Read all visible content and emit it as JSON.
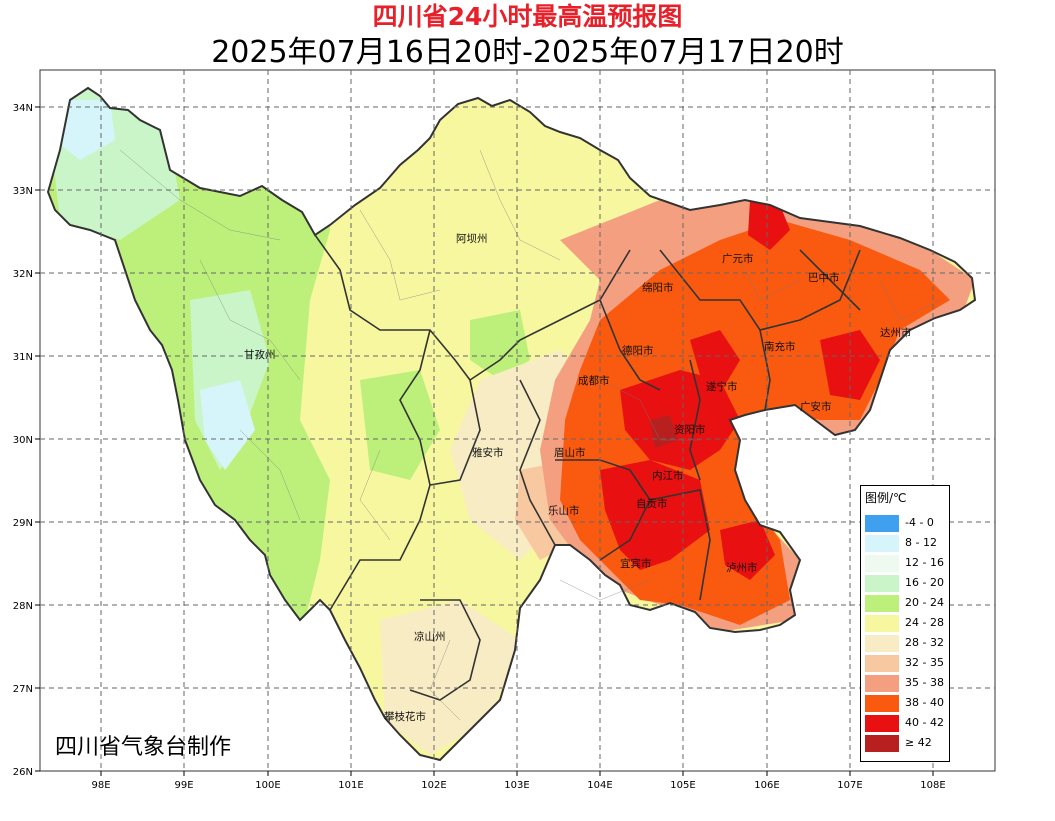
{
  "title": "四川省24小时最高温预报图",
  "subtitle": "2025年07月16日20时-2025年07月17日20时",
  "credit": "四川省气象台制作",
  "axes": {
    "lon_ticks": [
      "98E",
      "99E",
      "100E",
      "101E",
      "102E",
      "103E",
      "104E",
      "105E",
      "106E",
      "107E",
      "108E"
    ],
    "lat_ticks": [
      "34N",
      "33N",
      "32N",
      "31N",
      "30N",
      "29N",
      "28N",
      "27N",
      "26N"
    ]
  },
  "cities": [
    {
      "name": "阿坝州"
    },
    {
      "name": "甘孜州"
    },
    {
      "name": "绵阳市"
    },
    {
      "name": "广元市"
    },
    {
      "name": "巴中市"
    },
    {
      "name": "达州市"
    },
    {
      "name": "南充市"
    },
    {
      "name": "德阳市"
    },
    {
      "name": "成都市"
    },
    {
      "name": "遂宁市"
    },
    {
      "name": "广安市"
    },
    {
      "name": "资阳市"
    },
    {
      "name": "雅安市"
    },
    {
      "name": "眉山市"
    },
    {
      "name": "内江市"
    },
    {
      "name": "乐山市"
    },
    {
      "name": "自贡市"
    },
    {
      "name": "宜宾市"
    },
    {
      "name": "泸州市"
    },
    {
      "name": "凉山州"
    },
    {
      "name": "攀枝花市"
    }
  ],
  "legend": {
    "title": "图例/℃",
    "items": [
      {
        "label": "-4 - 0",
        "color": "#3fa0f0"
      },
      {
        "label": "8 - 12",
        "color": "#d6f5fb"
      },
      {
        "label": "12 - 16",
        "color": "#eefaf0"
      },
      {
        "label": "16 - 20",
        "color": "#c9f5c9"
      },
      {
        "label": "20 - 24",
        "color": "#bdf07a"
      },
      {
        "label": "24 - 28",
        "color": "#f7f7a0"
      },
      {
        "label": "28 - 32",
        "color": "#f8ecc4"
      },
      {
        "label": "32 - 35",
        "color": "#f8c8a0"
      },
      {
        "label": "35 - 38",
        "color": "#f4a080"
      },
      {
        "label": "38 - 40",
        "color": "#fa5a10"
      },
      {
        "label": "40 - 42",
        "color": "#e81010"
      },
      {
        "label": "≥ 42",
        "color": "#b82020"
      }
    ]
  }
}
